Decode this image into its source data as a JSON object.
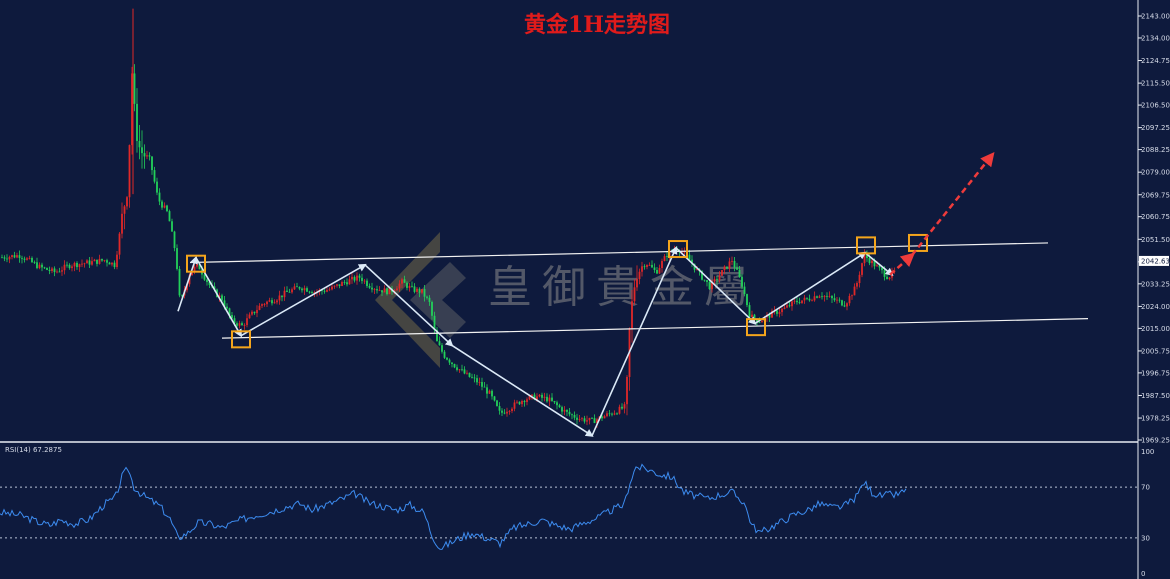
{
  "chart_data": {
    "type": "candlestick",
    "title": "黄金1H走势图",
    "watermark": "皇御貴金屬",
    "ylim": [
      1969.25,
      2146
    ],
    "y_ticks": [
      "2143.00",
      "2134.00",
      "2124.75",
      "2115.50",
      "2106.50",
      "2097.25",
      "2088.25",
      "2079.00",
      "2069.75",
      "2060.75",
      "2051.50",
      "2042.25",
      "2033.25",
      "2024.00",
      "2015.00",
      "2005.75",
      "1996.75",
      "1987.50",
      "1978.25",
      "1969.25"
    ],
    "current_price": "2042.63",
    "price_path": [
      [
        0,
        2044
      ],
      [
        20,
        2045
      ],
      [
        40,
        2040
      ],
      [
        55,
        2038
      ],
      [
        70,
        2041
      ],
      [
        90,
        2042
      ],
      [
        105,
        2043
      ],
      [
        115,
        2041
      ],
      [
        122,
        2060
      ],
      [
        128,
        2075
      ],
      [
        132,
        2120
      ],
      [
        135,
        2100
      ],
      [
        140,
        2088
      ],
      [
        150,
        2084
      ],
      [
        158,
        2068
      ],
      [
        168,
        2062
      ],
      [
        176,
        2045
      ],
      [
        180,
        2025
      ],
      [
        190,
        2038
      ],
      [
        198,
        2041
      ],
      [
        206,
        2035
      ],
      [
        214,
        2030
      ],
      [
        222,
        2027
      ],
      [
        232,
        2018
      ],
      [
        242,
        2016
      ],
      [
        250,
        2020
      ],
      [
        262,
        2025
      ],
      [
        275,
        2027
      ],
      [
        288,
        2030
      ],
      [
        300,
        2032
      ],
      [
        315,
        2030
      ],
      [
        330,
        2031
      ],
      [
        345,
        2034
      ],
      [
        360,
        2036
      ],
      [
        368,
        2033
      ],
      [
        378,
        2031
      ],
      [
        390,
        2030
      ],
      [
        402,
        2034
      ],
      [
        412,
        2031
      ],
      [
        422,
        2030
      ],
      [
        430,
        2025
      ],
      [
        436,
        2010
      ],
      [
        444,
        2004
      ],
      [
        454,
        2000
      ],
      [
        466,
        1996
      ],
      [
        478,
        1993
      ],
      [
        490,
        1988
      ],
      [
        500,
        1980
      ],
      [
        512,
        1983
      ],
      [
        524,
        1986
      ],
      [
        536,
        1987
      ],
      [
        548,
        1986
      ],
      [
        558,
        1983
      ],
      [
        568,
        1980
      ],
      [
        580,
        1978
      ],
      [
        592,
        1977
      ],
      [
        604,
        1979
      ],
      [
        616,
        1981
      ],
      [
        626,
        1983
      ],
      [
        630,
        2018
      ],
      [
        636,
        2038
      ],
      [
        646,
        2042
      ],
      [
        656,
        2038
      ],
      [
        668,
        2046
      ],
      [
        678,
        2048
      ],
      [
        688,
        2044
      ],
      [
        698,
        2038
      ],
      [
        710,
        2032
      ],
      [
        722,
        2038
      ],
      [
        732,
        2043
      ],
      [
        742,
        2033
      ],
      [
        750,
        2020
      ],
      [
        760,
        2018
      ],
      [
        772,
        2021
      ],
      [
        784,
        2023
      ],
      [
        796,
        2026
      ],
      [
        808,
        2027
      ],
      [
        820,
        2029
      ],
      [
        832,
        2027
      ],
      [
        845,
        2025
      ],
      [
        856,
        2032
      ],
      [
        864,
        2045
      ],
      [
        872,
        2042
      ],
      [
        880,
        2039
      ],
      [
        888,
        2036
      ],
      [
        894,
        2038
      ]
    ],
    "channel_upper": [
      [
        190,
        2042
      ],
      [
        1048,
        2050
      ]
    ],
    "channel_lower": [
      [
        222,
        2011
      ],
      [
        1088,
        2019
      ]
    ],
    "wave_path": [
      [
        178,
        2022
      ],
      [
        196,
        2044
      ],
      [
        241,
        2012
      ],
      [
        365,
        2041
      ],
      [
        452,
        2008
      ],
      [
        592,
        1971
      ],
      [
        676,
        2048
      ],
      [
        755,
        2017
      ],
      [
        865,
        2046
      ],
      [
        892,
        2037
      ]
    ],
    "boxes": [
      [
        196,
        2041.5
      ],
      [
        241,
        2010.5
      ],
      [
        678,
        2047.5
      ],
      [
        756,
        2015.5
      ],
      [
        866,
        2049
      ],
      [
        918,
        2050
      ]
    ],
    "forecast_path": [
      [
        890,
        2037
      ],
      [
        912,
        2045
      ],
      [
        992,
        2086
      ]
    ],
    "rsi": {
      "label": "RSI(14) 67.2875",
      "ylim": [
        0,
        100
      ],
      "levels": [
        30,
        70
      ],
      "y_ticks": [
        "100",
        "70",
        "30",
        "0"
      ],
      "values": [
        [
          0,
          50
        ],
        [
          20,
          48
        ],
        [
          40,
          42
        ],
        [
          50,
          40
        ],
        [
          60,
          44
        ],
        [
          75,
          41
        ],
        [
          90,
          45
        ],
        [
          105,
          57
        ],
        [
          115,
          61
        ],
        [
          122,
          78
        ],
        [
          128,
          85
        ],
        [
          134,
          70
        ],
        [
          142,
          64
        ],
        [
          150,
          60
        ],
        [
          160,
          55
        ],
        [
          170,
          45
        ],
        [
          178,
          30
        ],
        [
          188,
          34
        ],
        [
          198,
          42
        ],
        [
          210,
          41
        ],
        [
          222,
          38
        ],
        [
          240,
          44
        ],
        [
          256,
          48
        ],
        [
          272,
          51
        ],
        [
          288,
          55
        ],
        [
          300,
          57
        ],
        [
          312,
          52
        ],
        [
          326,
          56
        ],
        [
          340,
          60
        ],
        [
          355,
          65
        ],
        [
          368,
          58
        ],
        [
          382,
          55
        ],
        [
          396,
          52
        ],
        [
          410,
          56
        ],
        [
          424,
          50
        ],
        [
          432,
          32
        ],
        [
          440,
          22
        ],
        [
          448,
          25
        ],
        [
          460,
          30
        ],
        [
          472,
          34
        ],
        [
          486,
          30
        ],
        [
          500,
          26
        ],
        [
          514,
          38
        ],
        [
          528,
          41
        ],
        [
          542,
          44
        ],
        [
          556,
          40
        ],
        [
          570,
          37
        ],
        [
          584,
          42
        ],
        [
          598,
          46
        ],
        [
          612,
          52
        ],
        [
          624,
          56
        ],
        [
          630,
          74
        ],
        [
          636,
          86
        ],
        [
          648,
          84
        ],
        [
          660,
          80
        ],
        [
          672,
          78
        ],
        [
          684,
          66
        ],
        [
          696,
          63
        ],
        [
          708,
          61
        ],
        [
          720,
          64
        ],
        [
          732,
          66
        ],
        [
          744,
          58
        ],
        [
          752,
          40
        ],
        [
          760,
          34
        ],
        [
          772,
          39
        ],
        [
          784,
          44
        ],
        [
          796,
          49
        ],
        [
          808,
          52
        ],
        [
          820,
          57
        ],
        [
          832,
          54
        ],
        [
          844,
          55
        ],
        [
          856,
          62
        ],
        [
          864,
          74
        ],
        [
          872,
          66
        ],
        [
          880,
          63
        ],
        [
          888,
          64
        ],
        [
          896,
          64
        ],
        [
          906,
          67
        ]
      ]
    }
  }
}
